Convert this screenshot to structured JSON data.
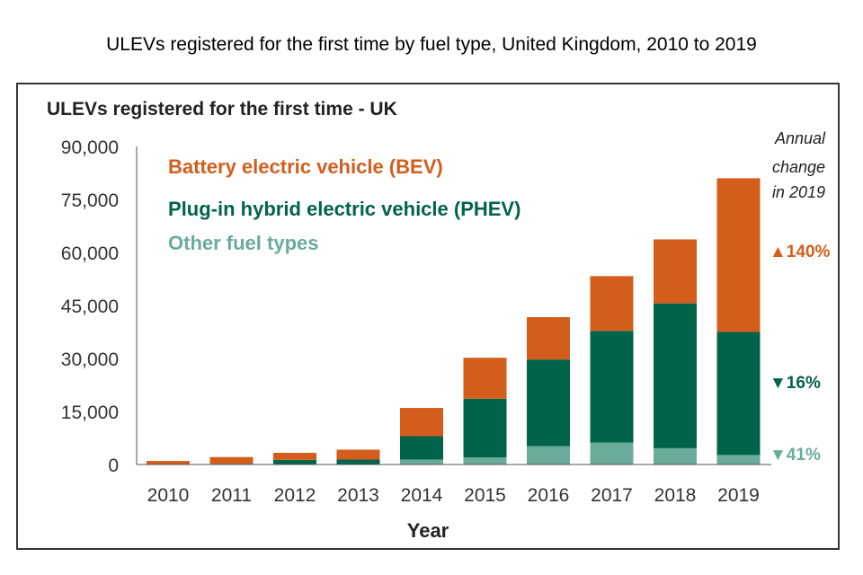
{
  "page_title": "ULEVs registered for the first time by fuel type, United Kingdom, 2010 to 2019",
  "chart_data": {
    "type": "bar",
    "stacked": true,
    "title": "ULEVs registered for the first time - UK",
    "xlabel": "Year",
    "ylabel": "",
    "ylim": [
      0,
      90000
    ],
    "yticks": [
      "0",
      "15,000",
      "30,000",
      "45,000",
      "60,000",
      "75,000",
      "90,000"
    ],
    "ytick_values": [
      0,
      15000,
      30000,
      45000,
      60000,
      75000,
      90000
    ],
    "categories": [
      "2010",
      "2011",
      "2012",
      "2013",
      "2014",
      "2015",
      "2016",
      "2017",
      "2018",
      "2019"
    ],
    "series": [
      {
        "name": "Other fuel types",
        "color": "#6aab9c",
        "values": [
          0,
          0,
          0,
          0,
          1400,
          2000,
          5200,
          6200,
          4600,
          2700
        ]
      },
      {
        "name": "Plug-in hybrid electric vehicle (PHEV)",
        "color": "#00634a",
        "values": [
          0,
          200,
          1300,
          1400,
          6600,
          16600,
          24500,
          31600,
          41000,
          34800
        ]
      },
      {
        "name": "Battery electric vehicle (BEV)",
        "color": "#d35d1b",
        "values": [
          1000,
          1900,
          2000,
          2800,
          8000,
          11600,
          12000,
          15500,
          18100,
          43500
        ]
      }
    ],
    "legend_position": "top-left",
    "grid": false,
    "annotation_title": [
      "Annual",
      "change",
      "in 2019"
    ],
    "annual_change": [
      {
        "label": "▲140%",
        "color": "#d35d1b"
      },
      {
        "label": "▼16%",
        "color": "#00634a"
      },
      {
        "label": "▼41%",
        "color": "#6aab9c"
      }
    ]
  }
}
